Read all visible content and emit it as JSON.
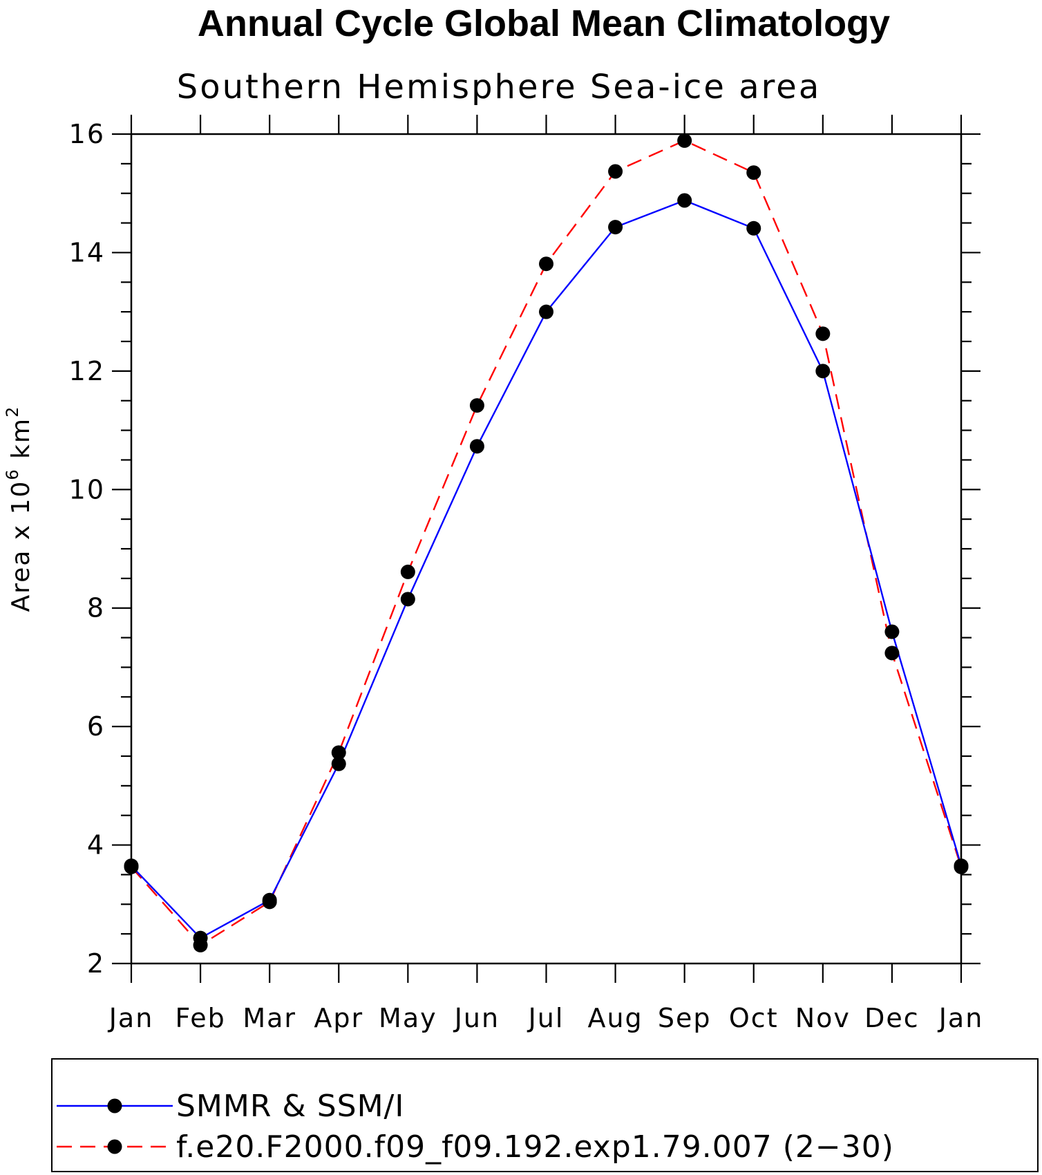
{
  "chart_data": {
    "type": "line",
    "title": "Annual Cycle Global Mean Climatology",
    "subtitle": "Southern Hemisphere Sea-ice area",
    "ylabel": "Area x 10",
    "ylabel_exponent": "6",
    "ylabel_unit": "km",
    "ylabel_unit_exponent": "2",
    "xlabel": "",
    "ylim": [
      2,
      16
    ],
    "yticks": [
      "16",
      "14",
      "12",
      "10",
      "8",
      "6",
      "4",
      "2"
    ],
    "categories": [
      "Jan",
      "Feb",
      "Mar",
      "Apr",
      "May",
      "Jun",
      "Jul",
      "Aug",
      "Sep",
      "Oct",
      "Nov",
      "Dec",
      "Jan"
    ],
    "series": [
      {
        "name": "SMMR & SSM/I",
        "color": "#0000ff",
        "line_style": "solid",
        "marker": "filled-circle",
        "values": [
          3.65,
          2.43,
          3.07,
          5.37,
          8.15,
          10.73,
          13.0,
          14.43,
          14.88,
          14.41,
          12.0,
          7.6,
          3.65
        ]
      },
      {
        "name": "f.e20.F2000.f09_f09.192.exp1.79.007 (2−30)",
        "color": "#ff0000",
        "line_style": "dashed",
        "marker": "filled-circle",
        "values": [
          3.63,
          2.31,
          3.04,
          5.56,
          8.61,
          11.42,
          13.81,
          15.37,
          15.89,
          15.35,
          12.63,
          7.24,
          3.63
        ]
      }
    ],
    "legend_position": "bottom"
  }
}
